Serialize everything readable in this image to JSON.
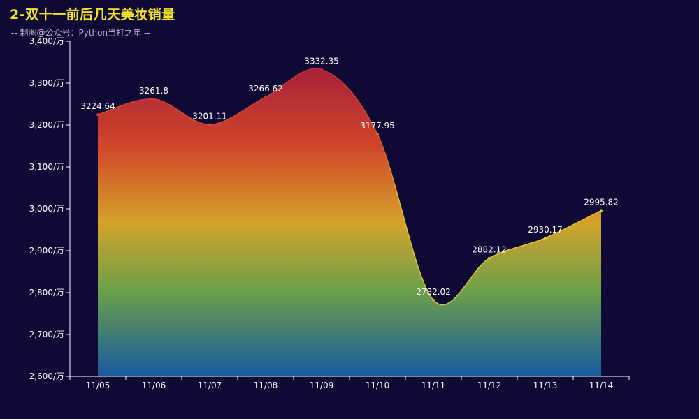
{
  "header": {
    "title": "2-双十一前后几天美妆销量",
    "subtitle": "-- 制图@公众号：Python当打之年 --"
  },
  "colors": {
    "background": "#0e0935",
    "title": "#f5e62a",
    "gradient": [
      "#a8213a",
      "#d0452a",
      "#d4a22a",
      "#6da048",
      "#185aa0"
    ]
  },
  "chart_data": {
    "type": "area",
    "title": "2-双十一前后几天美妆销量",
    "subtitle": "-- 制图@公众号：Python当打之年 --",
    "xlabel": "",
    "ylabel": "",
    "categories": [
      "11/05",
      "11/06",
      "11/07",
      "11/08",
      "11/09",
      "11/10",
      "11/11",
      "11/12",
      "11/13",
      "11/14"
    ],
    "values": [
      3224.64,
      3261.8,
      3201.11,
      3266.62,
      3332.35,
      3177.95,
      2782.02,
      2882.12,
      2930.17,
      2995.82
    ],
    "data_labels": [
      "3224.64",
      "3261.8",
      "3201.11",
      "3266.62",
      "3332.35",
      "3177.95",
      "2782.02",
      "2882.12",
      "2930.17",
      "2995.82"
    ],
    "ylim": [
      2600,
      3400
    ],
    "yticks": [
      2600,
      2700,
      2800,
      2900,
      3000,
      3100,
      3200,
      3300,
      3400
    ],
    "ytick_labels": [
      "2,600/万",
      "2,700/万",
      "2,800/万",
      "2,900/万",
      "3,000/万",
      "3,100/万",
      "3,200/万",
      "3,300/万",
      "3,400/万"
    ],
    "smooth": true,
    "grid": false,
    "legend": "none"
  }
}
